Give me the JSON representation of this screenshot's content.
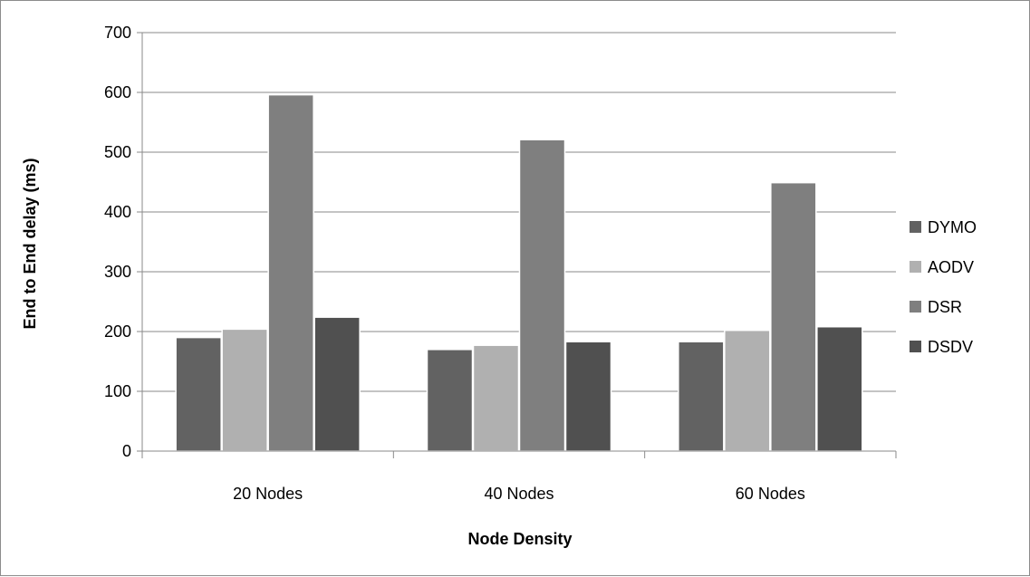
{
  "chart_data": {
    "type": "bar",
    "title": "",
    "xlabel": "Node Density",
    "ylabel": "End to End delay (ms)",
    "categories": [
      "20 Nodes",
      "40 Nodes",
      "60 Nodes"
    ],
    "ylim": [
      0,
      700
    ],
    "yticks": [
      0,
      100,
      200,
      300,
      400,
      500,
      600,
      700
    ],
    "grid": true,
    "legend_position": "right",
    "series": [
      {
        "name": "DYMO",
        "values": [
          190,
          170,
          183
        ],
        "color": "#626262"
      },
      {
        "name": "AODV",
        "values": [
          204,
          177,
          202
        ],
        "color": "#b0b0b0"
      },
      {
        "name": "DSR",
        "values": [
          596,
          521,
          449
        ],
        "color": "#7f7f7f"
      },
      {
        "name": "DSDV",
        "values": [
          224,
          183,
          208
        ],
        "color": "#505050"
      }
    ]
  }
}
